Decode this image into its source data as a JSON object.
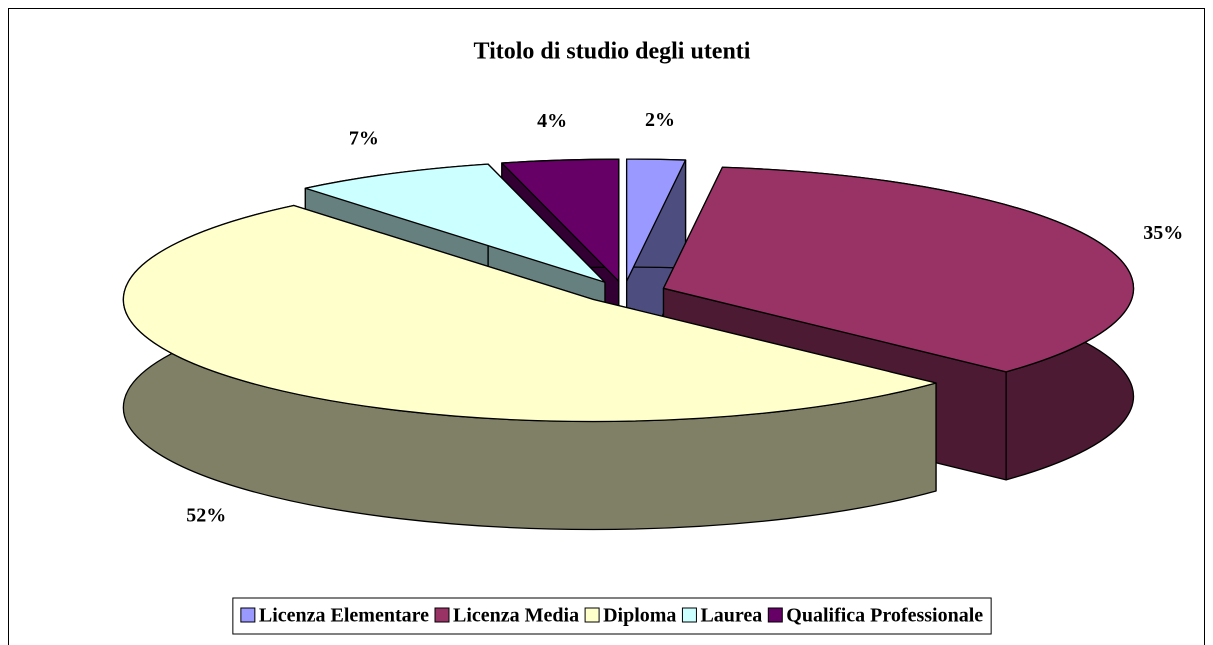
{
  "chart_data": {
    "type": "pie",
    "title": "Titolo di studio degli utenti",
    "categories": [
      "Licenza Elementare",
      "Licenza Media",
      "Diploma",
      "Laurea",
      "Qualifica Professionale"
    ],
    "values": [
      2,
      35,
      52,
      7,
      4
    ],
    "value_labels": [
      "2%",
      "35%",
      "52%",
      "7%",
      "4%"
    ],
    "colors": [
      "#9999ff",
      "#993366",
      "#ffffcc",
      "#ccffff",
      "#660066"
    ],
    "legend": "bottom"
  }
}
